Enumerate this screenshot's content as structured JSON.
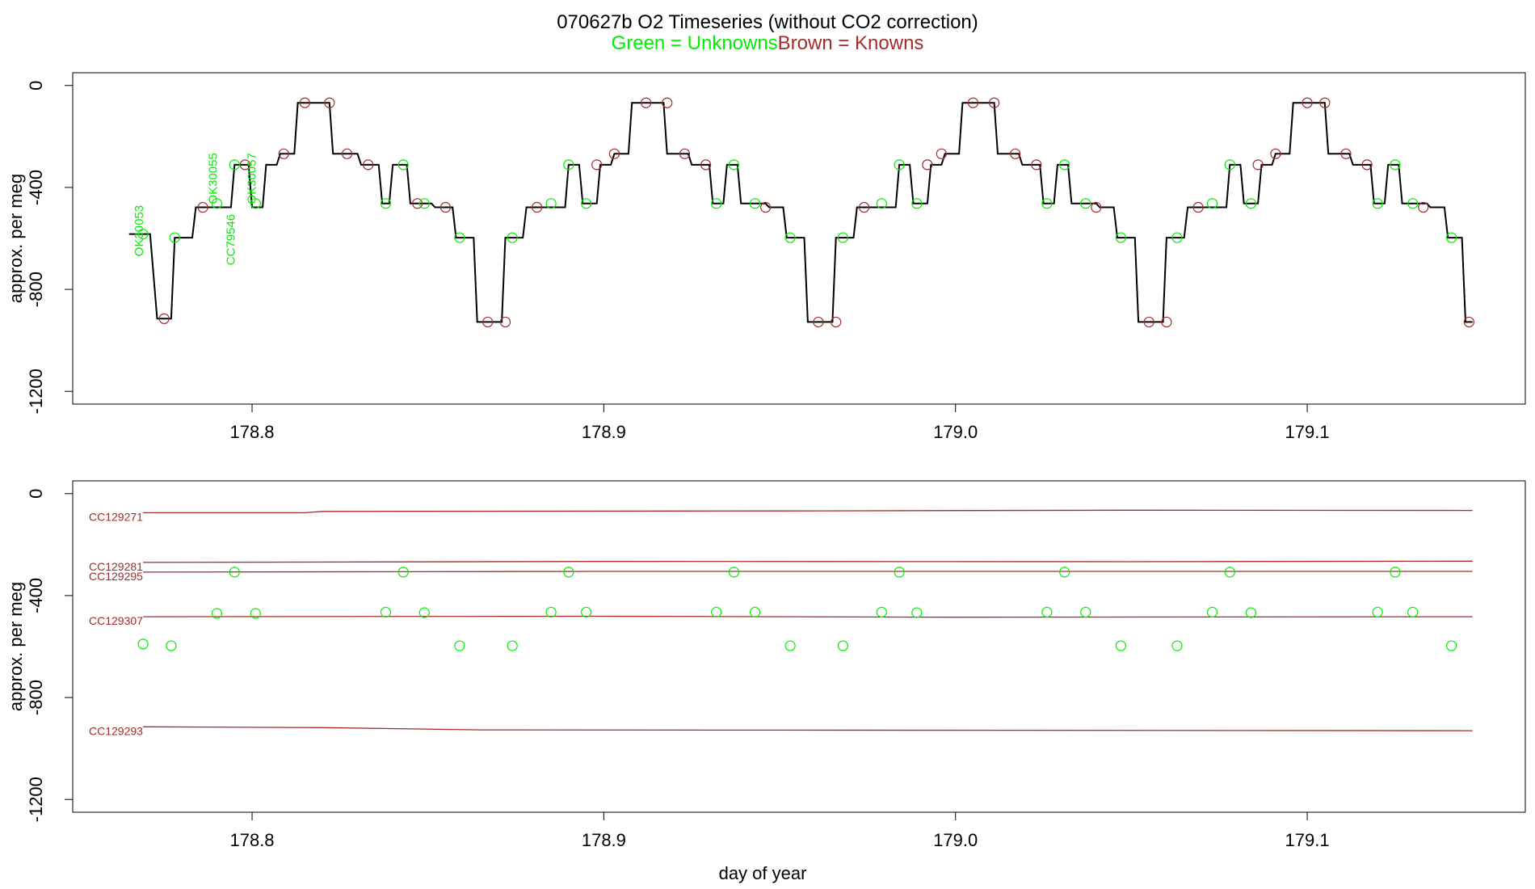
{
  "header": {
    "title": "070627b   O2 Timeseries (without CO2 correction)",
    "legend_unknowns": "Green = Unknowns",
    "legend_knowns": "Brown = Knowns"
  },
  "colors": {
    "unknowns": "#00ee00",
    "knowns": "#a52a2a",
    "trace": "#000000",
    "axis": "#000000"
  },
  "chart_data": [
    {
      "type": "line",
      "ylabel": "approx. per meg",
      "xlabel": "",
      "xlim": [
        178.749,
        179.162
      ],
      "ylim": [
        -1250,
        50
      ],
      "xticks": [
        178.8,
        178.9,
        179.0,
        179.1
      ],
      "xtick_labels": [
        "178.8",
        "178.9",
        "179.0",
        "179.1"
      ],
      "yticks": [
        0,
        -400,
        -800,
        -1200
      ],
      "ytick_labels": [
        "0",
        "-400",
        "-800",
        "-1200"
      ],
      "sample_labels": [
        {
          "text": "OK30053",
          "x": 178.769,
          "y": -570
        },
        {
          "text": "OK30055",
          "x": 178.79,
          "y": -365
        },
        {
          "text": "CC79546",
          "x": 178.795,
          "y": -605
        },
        {
          "text": "OK30057",
          "x": 178.801,
          "y": -365
        }
      ],
      "trace_steps": [
        [
          178.765,
          -583
        ],
        [
          178.771,
          -583
        ],
        [
          178.773,
          -915
        ],
        [
          178.777,
          -915
        ],
        [
          178.778,
          -597
        ],
        [
          178.783,
          -597
        ],
        [
          178.784,
          -478
        ],
        [
          178.794,
          -478
        ],
        [
          178.795,
          -311
        ],
        [
          178.799,
          -311
        ],
        [
          178.8,
          -478
        ],
        [
          178.803,
          -478
        ],
        [
          178.804,
          -311
        ],
        [
          178.807,
          -311
        ],
        [
          178.808,
          -268
        ],
        [
          178.812,
          -268
        ],
        [
          178.813,
          -68
        ],
        [
          178.822,
          -68
        ],
        [
          178.823,
          -268
        ],
        [
          178.83,
          -268
        ],
        [
          178.831,
          -311
        ],
        [
          178.836,
          -311
        ],
        [
          178.837,
          -463
        ],
        [
          178.839,
          -463
        ],
        [
          178.84,
          -311
        ],
        [
          178.844,
          -311
        ],
        [
          178.845,
          -463
        ],
        [
          178.851,
          -463
        ],
        [
          178.852,
          -478
        ],
        [
          178.857,
          -478
        ],
        [
          178.858,
          -597
        ],
        [
          178.863,
          -597
        ],
        [
          178.864,
          -928
        ],
        [
          178.871,
          -928
        ],
        [
          178.872,
          -597
        ],
        [
          178.877,
          -597
        ],
        [
          178.878,
          -478
        ],
        [
          178.889,
          -478
        ],
        [
          178.89,
          -311
        ],
        [
          178.893,
          -311
        ],
        [
          178.894,
          -463
        ],
        [
          178.898,
          -463
        ],
        [
          178.899,
          -311
        ],
        [
          178.902,
          -311
        ],
        [
          178.903,
          -268
        ],
        [
          178.907,
          -268
        ],
        [
          178.908,
          -68
        ],
        [
          178.917,
          -68
        ],
        [
          178.918,
          -268
        ],
        [
          178.924,
          -268
        ],
        [
          178.925,
          -311
        ],
        [
          178.93,
          -311
        ],
        [
          178.931,
          -463
        ],
        [
          178.934,
          -463
        ],
        [
          178.935,
          -311
        ],
        [
          178.938,
          -311
        ],
        [
          178.939,
          -463
        ],
        [
          178.946,
          -463
        ],
        [
          178.947,
          -478
        ],
        [
          178.951,
          -478
        ],
        [
          178.952,
          -597
        ],
        [
          178.957,
          -597
        ],
        [
          178.958,
          -928
        ],
        [
          178.965,
          -928
        ],
        [
          178.966,
          -597
        ],
        [
          178.971,
          -597
        ],
        [
          178.972,
          -478
        ],
        [
          178.983,
          -478
        ],
        [
          178.984,
          -311
        ],
        [
          178.987,
          -311
        ],
        [
          178.988,
          -463
        ],
        [
          178.992,
          -463
        ],
        [
          178.993,
          -311
        ],
        [
          178.996,
          -311
        ],
        [
          178.997,
          -268
        ],
        [
          179.001,
          -268
        ],
        [
          179.002,
          -68
        ],
        [
          179.011,
          -68
        ],
        [
          179.012,
          -268
        ],
        [
          179.018,
          -268
        ],
        [
          179.019,
          -311
        ],
        [
          179.024,
          -311
        ],
        [
          179.025,
          -463
        ],
        [
          179.028,
          -463
        ],
        [
          179.029,
          -311
        ],
        [
          179.032,
          -311
        ],
        [
          179.033,
          -463
        ],
        [
          179.04,
          -463
        ],
        [
          179.041,
          -478
        ],
        [
          179.045,
          -478
        ],
        [
          179.046,
          -597
        ],
        [
          179.051,
          -597
        ],
        [
          179.052,
          -928
        ],
        [
          179.059,
          -928
        ],
        [
          179.06,
          -597
        ],
        [
          179.065,
          -597
        ],
        [
          179.066,
          -478
        ],
        [
          179.077,
          -478
        ],
        [
          179.078,
          -311
        ],
        [
          179.081,
          -311
        ],
        [
          179.082,
          -463
        ],
        [
          179.086,
          -463
        ],
        [
          179.087,
          -311
        ],
        [
          179.09,
          -311
        ],
        [
          179.091,
          -268
        ],
        [
          179.095,
          -268
        ],
        [
          179.096,
          -68
        ],
        [
          179.105,
          -68
        ],
        [
          179.106,
          -268
        ],
        [
          179.112,
          -268
        ],
        [
          179.113,
          -311
        ],
        [
          179.118,
          -311
        ],
        [
          179.119,
          -463
        ],
        [
          179.122,
          -463
        ],
        [
          179.123,
          -311
        ],
        [
          179.126,
          -311
        ],
        [
          179.127,
          -463
        ],
        [
          179.134,
          -463
        ],
        [
          179.135,
          -478
        ],
        [
          179.139,
          -478
        ],
        [
          179.14,
          -597
        ],
        [
          179.144,
          -597
        ],
        [
          179.145,
          -928
        ],
        [
          179.147,
          -928
        ]
      ],
      "known_points": [
        [
          178.775,
          -915
        ],
        [
          178.786,
          -478
        ],
        [
          178.798,
          -311
        ],
        [
          178.809,
          -268
        ],
        [
          178.815,
          -68
        ],
        [
          178.822,
          -68
        ],
        [
          178.827,
          -268
        ],
        [
          178.833,
          -311
        ],
        [
          178.847,
          -463
        ],
        [
          178.855,
          -478
        ],
        [
          178.867,
          -928
        ],
        [
          178.872,
          -928
        ],
        [
          178.881,
          -478
        ],
        [
          178.898,
          -311
        ],
        [
          178.903,
          -268
        ],
        [
          178.912,
          -68
        ],
        [
          178.918,
          -68
        ],
        [
          178.923,
          -268
        ],
        [
          178.929,
          -311
        ],
        [
          178.946,
          -478
        ],
        [
          178.961,
          -928
        ],
        [
          178.966,
          -928
        ],
        [
          178.974,
          -478
        ],
        [
          178.992,
          -311
        ],
        [
          178.996,
          -268
        ],
        [
          179.005,
          -68
        ],
        [
          179.011,
          -68
        ],
        [
          179.017,
          -268
        ],
        [
          179.023,
          -311
        ],
        [
          179.04,
          -478
        ],
        [
          179.055,
          -928
        ],
        [
          179.06,
          -928
        ],
        [
          179.069,
          -478
        ],
        [
          179.086,
          -311
        ],
        [
          179.091,
          -268
        ],
        [
          179.1,
          -68
        ],
        [
          179.105,
          -68
        ],
        [
          179.111,
          -268
        ],
        [
          179.117,
          -311
        ],
        [
          179.133,
          -478
        ],
        [
          179.146,
          -928
        ]
      ],
      "unknown_points": [
        [
          178.769,
          -583
        ],
        [
          178.778,
          -597
        ],
        [
          178.79,
          -463
        ],
        [
          178.795,
          -311
        ],
        [
          178.801,
          -463
        ],
        [
          178.838,
          -463
        ],
        [
          178.843,
          -311
        ],
        [
          178.849,
          -463
        ],
        [
          178.859,
          -597
        ],
        [
          178.874,
          -597
        ],
        [
          178.885,
          -463
        ],
        [
          178.89,
          -311
        ],
        [
          178.895,
          -463
        ],
        [
          178.932,
          -463
        ],
        [
          178.937,
          -311
        ],
        [
          178.943,
          -463
        ],
        [
          178.953,
          -597
        ],
        [
          178.968,
          -597
        ],
        [
          178.979,
          -463
        ],
        [
          178.984,
          -311
        ],
        [
          178.989,
          -463
        ],
        [
          179.026,
          -463
        ],
        [
          179.031,
          -311
        ],
        [
          179.037,
          -463
        ],
        [
          179.047,
          -597
        ],
        [
          179.063,
          -597
        ],
        [
          179.073,
          -463
        ],
        [
          179.078,
          -311
        ],
        [
          179.084,
          -463
        ],
        [
          179.12,
          -463
        ],
        [
          179.125,
          -311
        ],
        [
          179.13,
          -463
        ],
        [
          179.141,
          -597
        ]
      ]
    },
    {
      "type": "scatter",
      "ylabel": "approx. per meg",
      "xlabel": "day of year",
      "xlim": [
        178.749,
        179.162
      ],
      "ylim": [
        -1250,
        50
      ],
      "xticks": [
        178.8,
        178.9,
        179.0,
        179.1
      ],
      "xtick_labels": [
        "178.8",
        "178.9",
        "179.0",
        "179.1"
      ],
      "yticks": [
        0,
        -400,
        -800,
        -1200
      ],
      "ytick_labels": [
        "0",
        "-400",
        "-800",
        "-1200"
      ],
      "known_series": [
        {
          "name": "CC129271",
          "points": [
            [
              178.769,
              -75
            ],
            [
              178.815,
              -75
            ],
            [
              178.82,
              -70
            ],
            [
              178.95,
              -68
            ],
            [
              179.05,
              -65
            ],
            [
              179.147,
              -66
            ]
          ]
        },
        {
          "name": "CC129281",
          "points": [
            [
              178.769,
              -270
            ],
            [
              178.9,
              -266
            ],
            [
              179.05,
              -267
            ],
            [
              179.147,
              -265
            ]
          ]
        },
        {
          "name": "CC129295",
          "points": [
            [
              178.769,
              -308
            ],
            [
              178.9,
              -305
            ],
            [
              179.05,
              -305
            ],
            [
              179.147,
              -305
            ]
          ]
        },
        {
          "name": "CC129307",
          "points": [
            [
              178.769,
              -483
            ],
            [
              178.9,
              -481
            ],
            [
              179.0,
              -485
            ],
            [
              179.147,
              -483
            ]
          ]
        },
        {
          "name": "CC129293",
          "points": [
            [
              178.769,
              -915
            ],
            [
              178.82,
              -918
            ],
            [
              178.865,
              -927
            ],
            [
              178.95,
              -928
            ],
            [
              179.147,
              -930
            ]
          ]
        }
      ],
      "unknown_points": [
        [
          178.769,
          -590
        ],
        [
          178.777,
          -597
        ],
        [
          178.79,
          -470
        ],
        [
          178.795,
          -308
        ],
        [
          178.801,
          -470
        ],
        [
          178.838,
          -465
        ],
        [
          178.843,
          -308
        ],
        [
          178.849,
          -467
        ],
        [
          178.859,
          -597
        ],
        [
          178.874,
          -597
        ],
        [
          178.885,
          -465
        ],
        [
          178.89,
          -308
        ],
        [
          178.895,
          -465
        ],
        [
          178.932,
          -465
        ],
        [
          178.937,
          -308
        ],
        [
          178.943,
          -465
        ],
        [
          178.953,
          -597
        ],
        [
          178.968,
          -597
        ],
        [
          178.979,
          -465
        ],
        [
          178.984,
          -308
        ],
        [
          178.989,
          -467
        ],
        [
          179.026,
          -465
        ],
        [
          179.031,
          -308
        ],
        [
          179.037,
          -465
        ],
        [
          179.047,
          -597
        ],
        [
          179.063,
          -597
        ],
        [
          179.073,
          -465
        ],
        [
          179.078,
          -308
        ],
        [
          179.084,
          -467
        ],
        [
          179.12,
          -465
        ],
        [
          179.125,
          -308
        ],
        [
          179.13,
          -465
        ],
        [
          179.141,
          -597
        ]
      ]
    }
  ]
}
